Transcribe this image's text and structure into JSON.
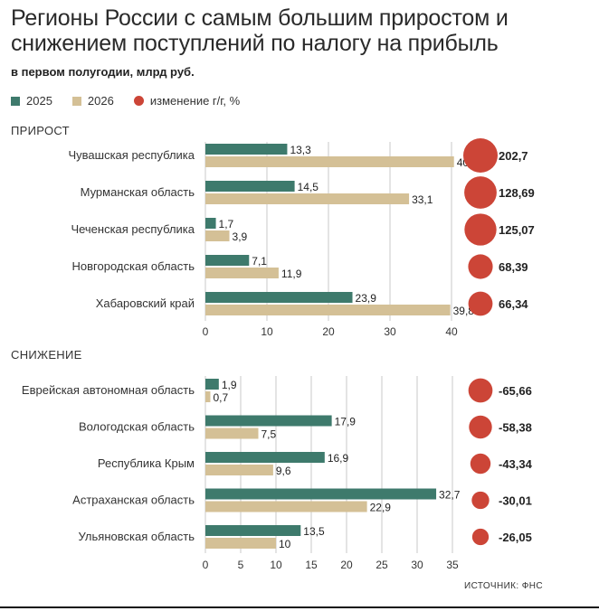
{
  "title": "Регионы России с самым большим приростом и снижением поступлений по налогу на прибыль",
  "subtitle": "в первом полугодии, млрд руб.",
  "legend": {
    "series_2025": "2025",
    "series_2026": "2026",
    "change": "изменение г/г, %"
  },
  "colors": {
    "series_2025": "#3e7a6c",
    "series_2026": "#d4c096",
    "change": "#cc4537",
    "grid": "#c8c8c8"
  },
  "source": "ИСТОЧНИК: ФНС",
  "chart_data": [
    {
      "type": "bar",
      "title": "ПРИРОСТ",
      "categories": [
        "Чувашская республика",
        "Мурманская область",
        "Чеченская республика",
        "Новгородская область",
        "Хабаровский край"
      ],
      "series": [
        {
          "name": "2025",
          "values": [
            13.3,
            14.5,
            1.7,
            7.1,
            23.9
          ]
        },
        {
          "name": "2026",
          "values": [
            40.4,
            33.1,
            3.9,
            11.9,
            39.8
          ]
        }
      ],
      "labels_2025": [
        "13,3",
        "14,5",
        "1,7",
        "7,1",
        "23,9"
      ],
      "labels_2026": [
        "40,4",
        "33,1",
        "3,9",
        "11,9",
        "39,8"
      ],
      "change": [
        202.7,
        128.69,
        125.07,
        68.39,
        66.34
      ],
      "change_labels": [
        "202,7",
        "128,69",
        "125,07",
        "68,39",
        "66,34"
      ],
      "xlim": [
        0,
        40
      ],
      "xticks": [
        "0",
        "10",
        "20",
        "30",
        "40"
      ],
      "grid": true
    },
    {
      "type": "bar",
      "title": "СНИЖЕНИЕ",
      "categories": [
        "Еврейская автономная область",
        "Вологодская область",
        "Республика Крым",
        "Астраханская область",
        "Ульяновская область"
      ],
      "series": [
        {
          "name": "2025",
          "values": [
            1.9,
            17.9,
            16.9,
            32.7,
            13.5
          ]
        },
        {
          "name": "2026",
          "values": [
            0.7,
            7.5,
            9.6,
            22.9,
            10
          ]
        }
      ],
      "labels_2025": [
        "1,9",
        "17,9",
        "16,9",
        "32,7",
        "13,5"
      ],
      "labels_2026": [
        "0,7",
        "7,5",
        "9,6",
        "22,9",
        "10"
      ],
      "change": [
        -65.66,
        -58.38,
        -43.34,
        -30.01,
        -26.05
      ],
      "change_labels": [
        "-65,66",
        "-58,38",
        "-43,34",
        "-30,01",
        "-26,05"
      ],
      "xlim": [
        0,
        35
      ],
      "xticks": [
        "0",
        "5",
        "10",
        "15",
        "20",
        "25",
        "30",
        "35"
      ],
      "grid": true
    }
  ]
}
